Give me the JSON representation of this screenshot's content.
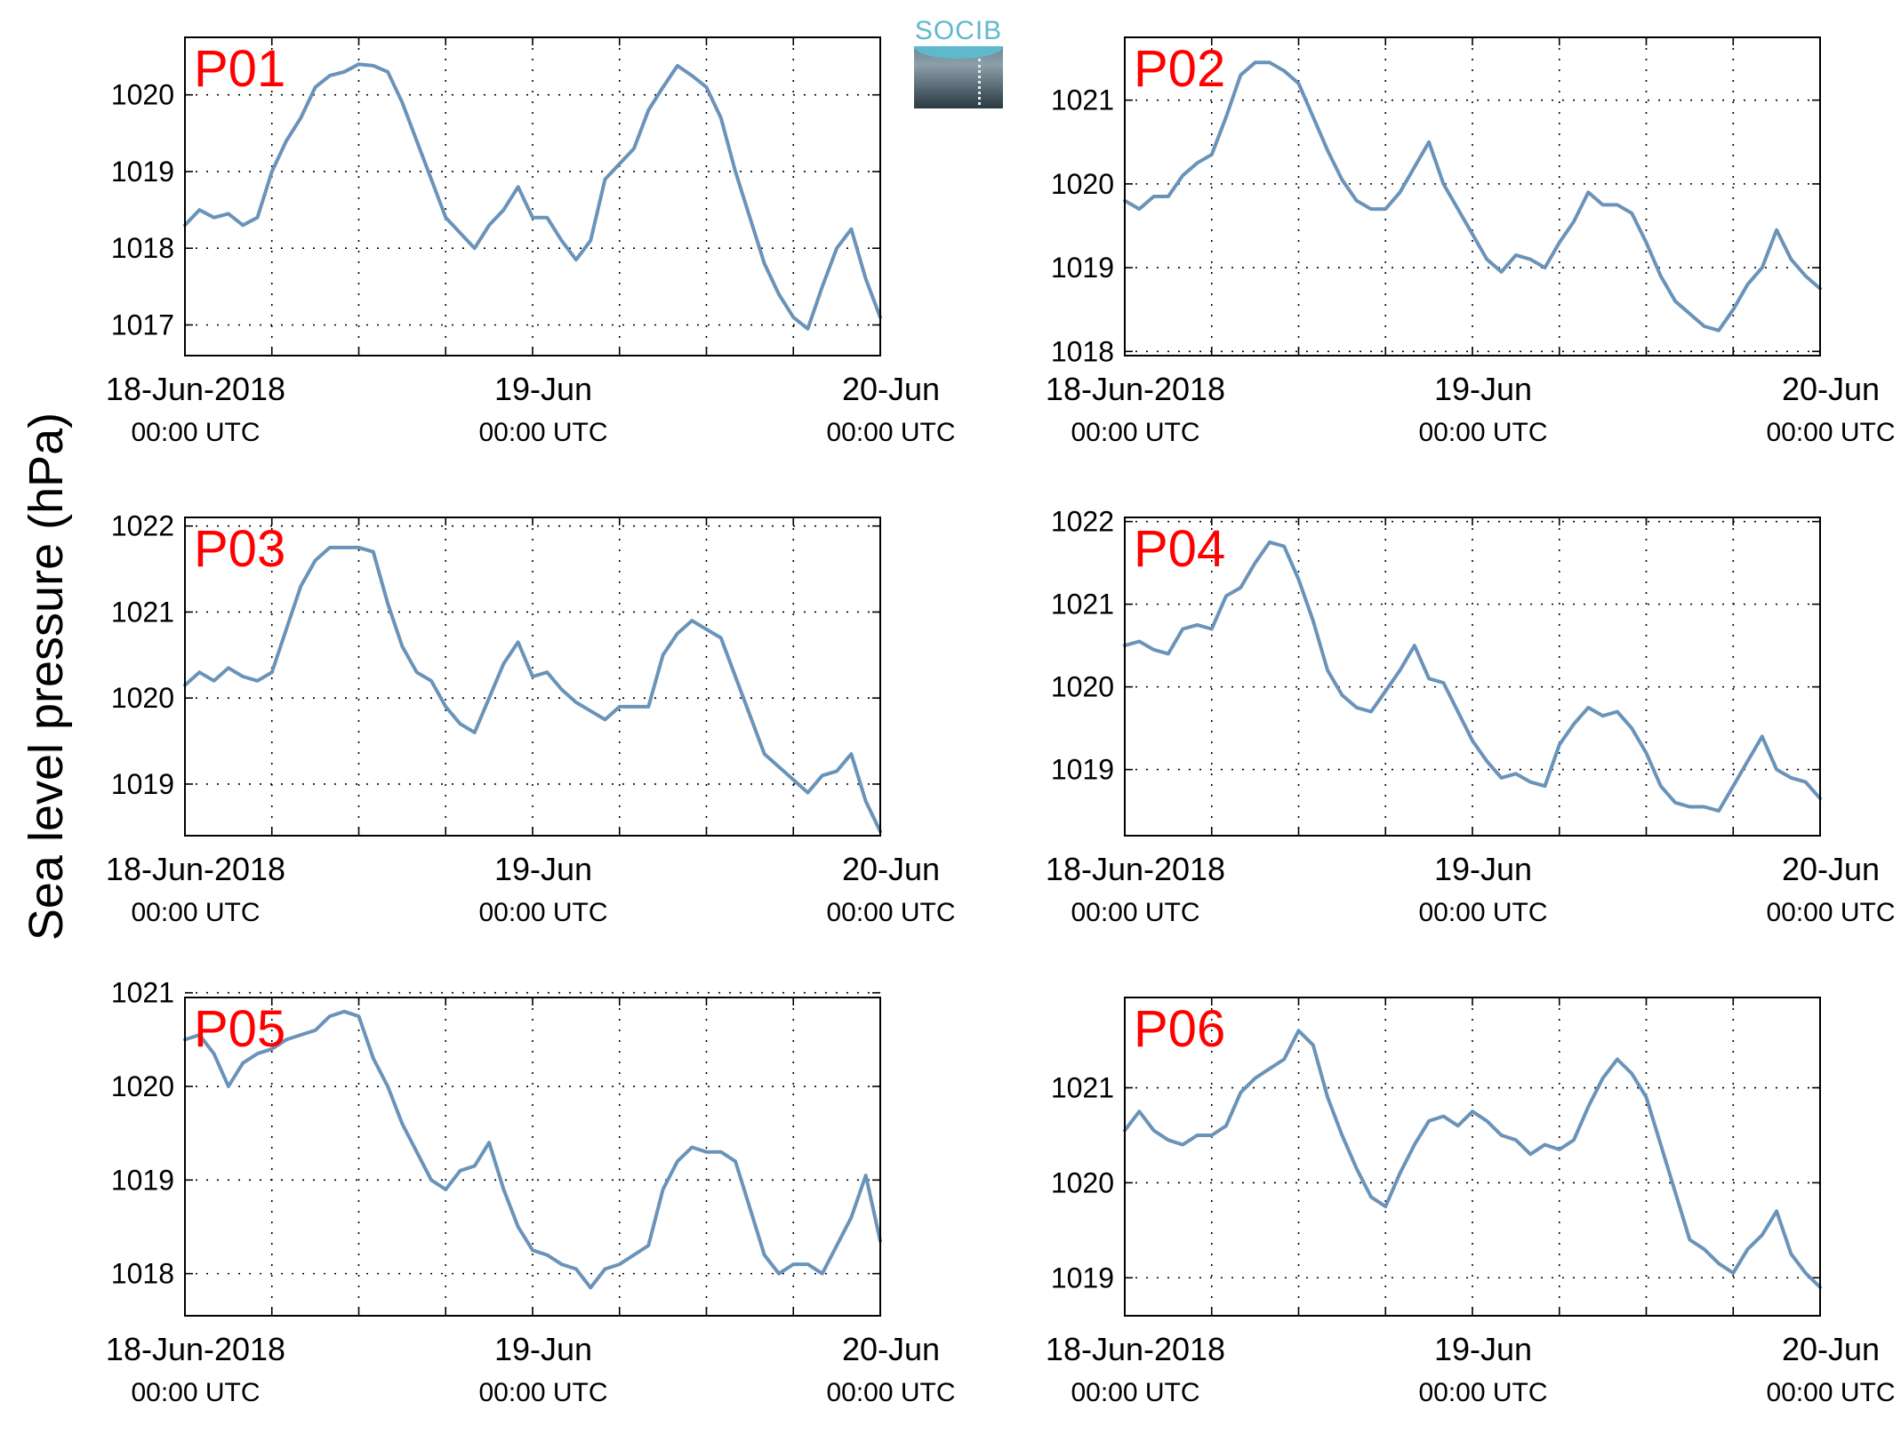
{
  "figure": {
    "ylabel": "Sea level pressure (hPa)",
    "logo_text": "SOCIB",
    "line_color": "#6a93b9",
    "panel_label_color": "#ff0000"
  },
  "chart_data": [
    {
      "type": "line",
      "label": "P01",
      "x_unit": "hours since 18-Jun-2018 00:00 UTC",
      "xlim": [
        0,
        48
      ],
      "xtick_labels": [
        [
          "18-Jun-2018",
          "00:00 UTC"
        ],
        [
          "19-Jun",
          "00:00 UTC"
        ],
        [
          "20-Jun",
          "00:00 UTC"
        ]
      ],
      "xtick_label_hours": [
        0,
        24,
        48
      ],
      "ylim": [
        1016.6,
        1020.75
      ],
      "yticks": [
        1017,
        1018,
        1019,
        1020
      ],
      "grid": true,
      "x": [
        0,
        1,
        2,
        3,
        4,
        5,
        6,
        7,
        8,
        9,
        10,
        11,
        12,
        13,
        14,
        15,
        16,
        17,
        18,
        19,
        20,
        21,
        22,
        23,
        24,
        25,
        26,
        27,
        28,
        29,
        30,
        31,
        32,
        33,
        34,
        35,
        36,
        37,
        38,
        39,
        40,
        41,
        42,
        43,
        44,
        45,
        46,
        47,
        48
      ],
      "y": [
        1018.3,
        1018.5,
        1018.4,
        1018.45,
        1018.3,
        1018.4,
        1019.0,
        1019.4,
        1019.7,
        1020.1,
        1020.25,
        1020.3,
        1020.4,
        1020.38,
        1020.3,
        1019.9,
        1019.4,
        1018.9,
        1018.4,
        1018.2,
        1018.0,
        1018.3,
        1018.5,
        1018.8,
        1018.4,
        1018.4,
        1018.1,
        1017.85,
        1018.1,
        1018.9,
        1019.1,
        1019.3,
        1019.8,
        1020.1,
        1020.38,
        1020.25,
        1020.1,
        1019.7,
        1019.0,
        1018.4,
        1017.8,
        1017.4,
        1017.1,
        1016.95,
        1017.5,
        1018.0,
        1018.25,
        1017.6,
        1017.1
      ]
    },
    {
      "type": "line",
      "label": "P02",
      "x_unit": "hours since 18-Jun-2018 00:00 UTC",
      "xlim": [
        0,
        48
      ],
      "xtick_labels": [
        [
          "18-Jun-2018",
          "00:00 UTC"
        ],
        [
          "19-Jun",
          "00:00 UTC"
        ],
        [
          "20-Jun",
          "00:00 UTC"
        ]
      ],
      "xtick_label_hours": [
        0,
        24,
        48
      ],
      "ylim": [
        1017.95,
        1021.75
      ],
      "yticks": [
        1018,
        1019,
        1020,
        1021
      ],
      "grid": true,
      "x": [
        0,
        1,
        2,
        3,
        4,
        5,
        6,
        7,
        8,
        9,
        10,
        11,
        12,
        13,
        14,
        15,
        16,
        17,
        18,
        19,
        20,
        21,
        22,
        23,
        24,
        25,
        26,
        27,
        28,
        29,
        30,
        31,
        32,
        33,
        34,
        35,
        36,
        37,
        38,
        39,
        40,
        41,
        42,
        43,
        44,
        45,
        46,
        47,
        48
      ],
      "y": [
        1019.8,
        1019.7,
        1019.85,
        1019.85,
        1020.1,
        1020.25,
        1020.35,
        1020.8,
        1021.3,
        1021.45,
        1021.45,
        1021.35,
        1021.2,
        1020.8,
        1020.4,
        1020.05,
        1019.8,
        1019.7,
        1019.7,
        1019.9,
        1020.2,
        1020.5,
        1020.0,
        1019.7,
        1019.4,
        1019.1,
        1018.95,
        1019.15,
        1019.1,
        1019.0,
        1019.3,
        1019.55,
        1019.9,
        1019.75,
        1019.75,
        1019.65,
        1019.3,
        1018.9,
        1018.6,
        1018.45,
        1018.3,
        1018.25,
        1018.5,
        1018.8,
        1019.0,
        1019.45,
        1019.1,
        1018.9,
        1018.75
      ]
    },
    {
      "type": "line",
      "label": "P03",
      "x_unit": "hours since 18-Jun-2018 00:00 UTC",
      "xlim": [
        0,
        48
      ],
      "xtick_labels": [
        [
          "18-Jun-2018",
          "00:00 UTC"
        ],
        [
          "19-Jun",
          "00:00 UTC"
        ],
        [
          "20-Jun",
          "00:00 UTC"
        ]
      ],
      "xtick_label_hours": [
        0,
        24,
        48
      ],
      "ylim": [
        1018.4,
        1022.1
      ],
      "yticks": [
        1019,
        1020,
        1021,
        1022
      ],
      "grid": true,
      "x": [
        0,
        1,
        2,
        3,
        4,
        5,
        6,
        7,
        8,
        9,
        10,
        11,
        12,
        13,
        14,
        15,
        16,
        17,
        18,
        19,
        20,
        21,
        22,
        23,
        24,
        25,
        26,
        27,
        28,
        29,
        30,
        31,
        32,
        33,
        34,
        35,
        36,
        37,
        38,
        39,
        40,
        41,
        42,
        43,
        44,
        45,
        46,
        47,
        48
      ],
      "y": [
        1020.15,
        1020.3,
        1020.2,
        1020.35,
        1020.25,
        1020.2,
        1020.3,
        1020.8,
        1021.3,
        1021.6,
        1021.75,
        1021.75,
        1021.75,
        1021.7,
        1021.1,
        1020.6,
        1020.3,
        1020.2,
        1019.9,
        1019.7,
        1019.6,
        1020.0,
        1020.4,
        1020.65,
        1020.25,
        1020.3,
        1020.1,
        1019.95,
        1019.85,
        1019.75,
        1019.9,
        1019.9,
        1019.9,
        1020.5,
        1020.75,
        1020.9,
        1020.8,
        1020.7,
        1020.25,
        1019.8,
        1019.35,
        1019.2,
        1019.05,
        1018.9,
        1019.1,
        1019.15,
        1019.35,
        1018.8,
        1018.45
      ]
    },
    {
      "type": "line",
      "label": "P04",
      "x_unit": "hours since 18-Jun-2018 00:00 UTC",
      "xlim": [
        0,
        48
      ],
      "xtick_labels": [
        [
          "18-Jun-2018",
          "00:00 UTC"
        ],
        [
          "19-Jun",
          "00:00 UTC"
        ],
        [
          "20-Jun",
          "00:00 UTC"
        ]
      ],
      "xtick_label_hours": [
        0,
        24,
        48
      ],
      "ylim": [
        1018.2,
        1022.05
      ],
      "yticks": [
        1019,
        1020,
        1021,
        1022
      ],
      "grid": true,
      "x": [
        0,
        1,
        2,
        3,
        4,
        5,
        6,
        7,
        8,
        9,
        10,
        11,
        12,
        13,
        14,
        15,
        16,
        17,
        18,
        19,
        20,
        21,
        22,
        23,
        24,
        25,
        26,
        27,
        28,
        29,
        30,
        31,
        32,
        33,
        34,
        35,
        36,
        37,
        38,
        39,
        40,
        41,
        42,
        43,
        44,
        45,
        46,
        47,
        48
      ],
      "y": [
        1020.5,
        1020.55,
        1020.45,
        1020.4,
        1020.7,
        1020.75,
        1020.7,
        1021.1,
        1021.2,
        1021.5,
        1021.75,
        1021.7,
        1021.3,
        1020.8,
        1020.2,
        1019.9,
        1019.75,
        1019.7,
        1019.95,
        1020.2,
        1020.5,
        1020.1,
        1020.05,
        1019.7,
        1019.35,
        1019.1,
        1018.9,
        1018.95,
        1018.85,
        1018.8,
        1019.3,
        1019.55,
        1019.75,
        1019.65,
        1019.7,
        1019.5,
        1019.2,
        1018.8,
        1018.6,
        1018.55,
        1018.55,
        1018.5,
        1018.8,
        1019.1,
        1019.4,
        1019.0,
        1018.9,
        1018.85,
        1018.65
      ]
    },
    {
      "type": "line",
      "label": "P05",
      "x_unit": "hours since 18-Jun-2018 00:00 UTC",
      "xlim": [
        0,
        48
      ],
      "xtick_labels": [
        [
          "18-Jun-2018",
          "00:00 UTC"
        ],
        [
          "19-Jun",
          "00:00 UTC"
        ],
        [
          "20-Jun",
          "00:00 UTC"
        ]
      ],
      "xtick_label_hours": [
        0,
        24,
        48
      ],
      "ylim": [
        1017.55,
        1020.95
      ],
      "yticks": [
        1018,
        1019,
        1020,
        1021
      ],
      "grid": true,
      "x": [
        0,
        1,
        2,
        3,
        4,
        5,
        6,
        7,
        8,
        9,
        10,
        11,
        12,
        13,
        14,
        15,
        16,
        17,
        18,
        19,
        20,
        21,
        22,
        23,
        24,
        25,
        26,
        27,
        28,
        29,
        30,
        31,
        32,
        33,
        34,
        35,
        36,
        37,
        38,
        39,
        40,
        41,
        42,
        43,
        44,
        45,
        46,
        47,
        48
      ],
      "y": [
        1020.5,
        1020.55,
        1020.35,
        1020.0,
        1020.25,
        1020.35,
        1020.4,
        1020.5,
        1020.55,
        1020.6,
        1020.75,
        1020.8,
        1020.75,
        1020.3,
        1020.0,
        1019.6,
        1019.3,
        1019.0,
        1018.9,
        1019.1,
        1019.15,
        1019.4,
        1018.9,
        1018.5,
        1018.25,
        1018.2,
        1018.1,
        1018.05,
        1017.85,
        1018.05,
        1018.1,
        1018.2,
        1018.3,
        1018.9,
        1019.2,
        1019.35,
        1019.3,
        1019.3,
        1019.2,
        1018.7,
        1018.2,
        1018.0,
        1018.1,
        1018.1,
        1018.0,
        1018.3,
        1018.6,
        1019.05,
        1018.35
      ]
    },
    {
      "type": "line",
      "label": "P06",
      "x_unit": "hours since 18-Jun-2018 00:00 UTC",
      "xlim": [
        0,
        48
      ],
      "xtick_labels": [
        [
          "18-Jun-2018",
          "00:00 UTC"
        ],
        [
          "19-Jun",
          "00:00 UTC"
        ],
        [
          "20-Jun",
          "00:00 UTC"
        ]
      ],
      "xtick_label_hours": [
        0,
        24,
        48
      ],
      "ylim": [
        1018.6,
        1021.95
      ],
      "yticks": [
        1019,
        1020,
        1021
      ],
      "grid": true,
      "x": [
        0,
        1,
        2,
        3,
        4,
        5,
        6,
        7,
        8,
        9,
        10,
        11,
        12,
        13,
        14,
        15,
        16,
        17,
        18,
        19,
        20,
        21,
        22,
        23,
        24,
        25,
        26,
        27,
        28,
        29,
        30,
        31,
        32,
        33,
        34,
        35,
        36,
        37,
        38,
        39,
        40,
        41,
        42,
        43,
        44,
        45,
        46,
        47,
        48
      ],
      "y": [
        1020.55,
        1020.75,
        1020.55,
        1020.45,
        1020.4,
        1020.5,
        1020.5,
        1020.6,
        1020.95,
        1021.1,
        1021.2,
        1021.3,
        1021.6,
        1021.45,
        1020.9,
        1020.5,
        1020.15,
        1019.85,
        1019.75,
        1020.1,
        1020.4,
        1020.65,
        1020.7,
        1020.6,
        1020.75,
        1020.65,
        1020.5,
        1020.45,
        1020.3,
        1020.4,
        1020.35,
        1020.45,
        1020.8,
        1021.1,
        1021.3,
        1021.15,
        1020.9,
        1020.4,
        1019.9,
        1019.4,
        1019.3,
        1019.15,
        1019.05,
        1019.3,
        1019.45,
        1019.7,
        1019.25,
        1019.05,
        1018.9
      ]
    }
  ]
}
